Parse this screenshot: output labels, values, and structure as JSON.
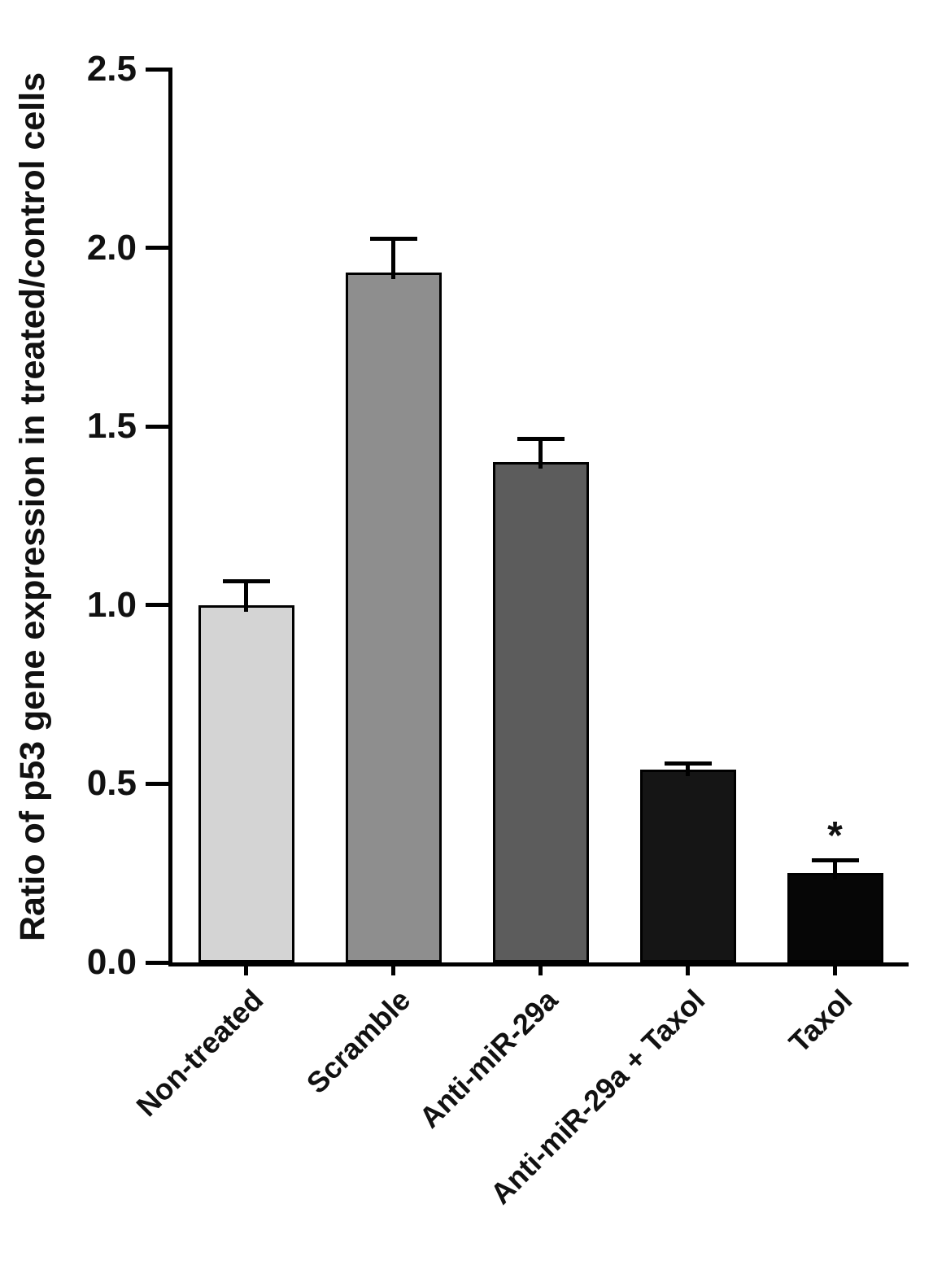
{
  "chart_data": {
    "type": "bar",
    "title": "",
    "xlabel": "",
    "ylabel": "Ratio of p53 gene expression in treated/control cells",
    "categories": [
      "Non-treated",
      "Scramble",
      "Anti-miR-29a",
      "Anti-miR-29a + Taxol",
      "Taxol"
    ],
    "values": [
      1.0,
      1.93,
      1.4,
      0.54,
      0.25
    ],
    "errors": [
      0.06,
      0.09,
      0.06,
      0.01,
      0.03
    ],
    "bar_colors": [
      "#d4d4d4",
      "#8e8e8e",
      "#5c5c5c",
      "#151515",
      "#060606"
    ],
    "bar_border_color": "#000000",
    "ylim": [
      0,
      2.5
    ],
    "yticks": [
      0.0,
      0.5,
      1.0,
      1.5,
      2.0,
      2.5
    ],
    "ytick_labels": [
      "0.0",
      "0.5",
      "1.0",
      "1.5",
      "2.0",
      "2.5"
    ],
    "grid": false,
    "legend": null,
    "annotations": [
      {
        "bar_index": 4,
        "text": "*",
        "meaning": "statistical-significance"
      }
    ]
  }
}
